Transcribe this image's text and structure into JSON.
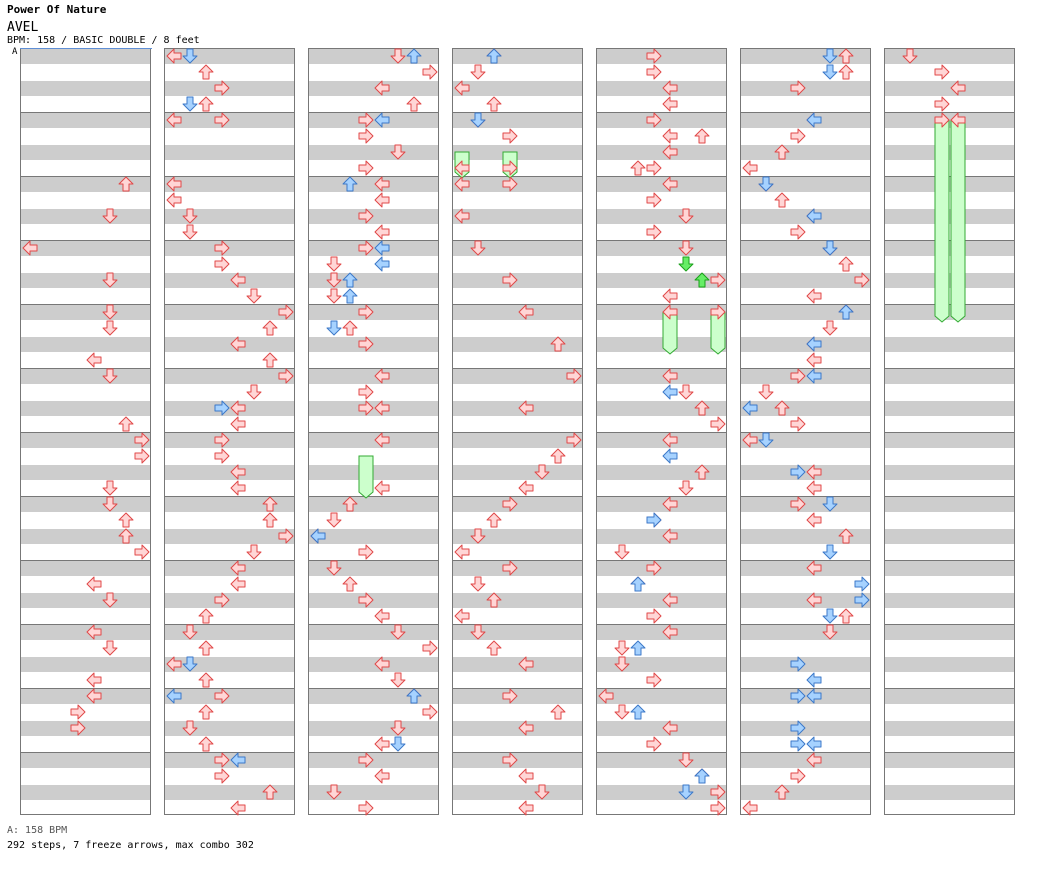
{
  "song": {
    "title": "Power Of Nature",
    "artist": "AVEL",
    "info": "BPM: 158 / BASIC DOUBLE / 8 feet",
    "segment_label": "A"
  },
  "footer": {
    "bpm_line": "A: 158 BPM",
    "stats_line": "292 steps, 7 freeze arrows, max combo 302"
  },
  "colors": {
    "quarter_fill": "#ffd6d6",
    "quarter_stroke": "#e04848",
    "eighth_fill": "#a6d2ff",
    "eighth_stroke": "#3c78c8",
    "green_fill": "#66ee66",
    "green_stroke": "#1aa01a",
    "freeze_fill": "#ccffcc",
    "freeze_stroke": "#33aa33",
    "stripe": "#cdcdcd"
  },
  "chart": {
    "panels": 8,
    "panel_order": [
      "left",
      "down",
      "up",
      "right",
      "left",
      "down",
      "up",
      "right"
    ],
    "measures_per_column": 12,
    "notes": [
      [
        0,
        8,
        6,
        "q"
      ],
      [
        0,
        10,
        5,
        "q"
      ],
      [
        0,
        12,
        0,
        "q"
      ],
      [
        0,
        14,
        5,
        "q"
      ],
      [
        0,
        16,
        5,
        "q"
      ],
      [
        0,
        17,
        5,
        "q"
      ],
      [
        0,
        19,
        4,
        "q"
      ],
      [
        0,
        20,
        5,
        "q"
      ],
      [
        0,
        23,
        6,
        "q"
      ],
      [
        0,
        24,
        7,
        "q"
      ],
      [
        0,
        25,
        7,
        "q"
      ],
      [
        0,
        27,
        5,
        "q"
      ],
      [
        0,
        28,
        5,
        "q"
      ],
      [
        0,
        29,
        6,
        "q"
      ],
      [
        0,
        30,
        6,
        "q"
      ],
      [
        0,
        31,
        7,
        "q"
      ],
      [
        0,
        33,
        4,
        "q"
      ],
      [
        0,
        34,
        5,
        "q"
      ],
      [
        0,
        36,
        4,
        "q"
      ],
      [
        0,
        37,
        5,
        "q"
      ],
      [
        0,
        39,
        4,
        "q"
      ],
      [
        0,
        40,
        4,
        "q"
      ],
      [
        0,
        41,
        3,
        "q"
      ],
      [
        0,
        42,
        3,
        "q"
      ],
      [
        1,
        0,
        0,
        "q"
      ],
      [
        1,
        0,
        1,
        "e"
      ],
      [
        1,
        1,
        2,
        "q"
      ],
      [
        1,
        2,
        3,
        "q"
      ],
      [
        1,
        3,
        1,
        "e"
      ],
      [
        1,
        3,
        2,
        "q"
      ],
      [
        1,
        4,
        0,
        "q"
      ],
      [
        1,
        4,
        3,
        "q"
      ],
      [
        1,
        8,
        0,
        "q"
      ],
      [
        1,
        9,
        0,
        "q"
      ],
      [
        1,
        10,
        1,
        "q"
      ],
      [
        1,
        11,
        1,
        "q"
      ],
      [
        1,
        12,
        3,
        "q"
      ],
      [
        1,
        13,
        3,
        "q"
      ],
      [
        1,
        14,
        4,
        "q"
      ],
      [
        1,
        15,
        5,
        "q"
      ],
      [
        1,
        16,
        7,
        "q"
      ],
      [
        1,
        17,
        6,
        "q"
      ],
      [
        1,
        18,
        4,
        "q"
      ],
      [
        1,
        19,
        6,
        "q"
      ],
      [
        1,
        20,
        7,
        "q"
      ],
      [
        1,
        21,
        5,
        "q"
      ],
      [
        1,
        22,
        4,
        "q"
      ],
      [
        1,
        22,
        3,
        "e"
      ],
      [
        1,
        23,
        4,
        "q"
      ],
      [
        1,
        24,
        3,
        "q"
      ],
      [
        1,
        25,
        3,
        "q"
      ],
      [
        1,
        26,
        4,
        "q"
      ],
      [
        1,
        27,
        4,
        "q"
      ],
      [
        1,
        28,
        6,
        "q"
      ],
      [
        1,
        29,
        6,
        "q"
      ],
      [
        1,
        30,
        7,
        "q"
      ],
      [
        1,
        31,
        5,
        "q"
      ],
      [
        1,
        32,
        4,
        "q"
      ],
      [
        1,
        33,
        4,
        "q"
      ],
      [
        1,
        34,
        3,
        "q"
      ],
      [
        1,
        35,
        2,
        "q"
      ],
      [
        1,
        36,
        1,
        "q"
      ],
      [
        1,
        37,
        2,
        "q"
      ],
      [
        1,
        38,
        0,
        "q"
      ],
      [
        1,
        38,
        1,
        "e"
      ],
      [
        1,
        39,
        2,
        "q"
      ],
      [
        1,
        40,
        3,
        "q"
      ],
      [
        1,
        40,
        0,
        "e"
      ],
      [
        1,
        41,
        2,
        "q"
      ],
      [
        1,
        42,
        1,
        "q"
      ],
      [
        1,
        43,
        2,
        "q"
      ],
      [
        1,
        44,
        3,
        "q"
      ],
      [
        1,
        44,
        4,
        "e"
      ],
      [
        1,
        45,
        3,
        "q"
      ],
      [
        1,
        46,
        6,
        "q"
      ],
      [
        1,
        47,
        4,
        "q"
      ],
      [
        2,
        0,
        5,
        "q"
      ],
      [
        2,
        0,
        6,
        "e"
      ],
      [
        2,
        1,
        7,
        "q"
      ],
      [
        2,
        2,
        4,
        "q"
      ],
      [
        2,
        3,
        6,
        "q"
      ],
      [
        2,
        4,
        3,
        "q"
      ],
      [
        2,
        4,
        4,
        "e"
      ],
      [
        2,
        5,
        3,
        "q"
      ],
      [
        2,
        6,
        5,
        "q"
      ],
      [
        2,
        7,
        3,
        "q"
      ],
      [
        2,
        8,
        4,
        "q"
      ],
      [
        2,
        8,
        2,
        "e"
      ],
      [
        2,
        9,
        4,
        "q"
      ],
      [
        2,
        10,
        3,
        "q"
      ],
      [
        2,
        11,
        4,
        "q"
      ],
      [
        2,
        12,
        3,
        "q"
      ],
      [
        2,
        12,
        4,
        "e"
      ],
      [
        2,
        13,
        4,
        "e"
      ],
      [
        2,
        13,
        1,
        "q"
      ],
      [
        2,
        14,
        1,
        "q"
      ],
      [
        2,
        14,
        2,
        "e"
      ],
      [
        2,
        15,
        1,
        "q"
      ],
      [
        2,
        15,
        2,
        "e"
      ],
      [
        2,
        16,
        3,
        "q"
      ],
      [
        2,
        17,
        2,
        "q"
      ],
      [
        2,
        17,
        1,
        "e"
      ],
      [
        2,
        18,
        3,
        "q"
      ],
      [
        2,
        20,
        4,
        "q"
      ],
      [
        2,
        21,
        3,
        "q"
      ],
      [
        2,
        22,
        3,
        "q"
      ],
      [
        2,
        22,
        4,
        "q"
      ],
      [
        2,
        24,
        4,
        "q"
      ],
      [
        2,
        27,
        4,
        "q"
      ],
      [
        2,
        28,
        2,
        "q"
      ],
      [
        2,
        29,
        1,
        "q"
      ],
      [
        2,
        30,
        0,
        "q"
      ],
      [
        2,
        30,
        0,
        "e"
      ],
      [
        2,
        31,
        3,
        "q"
      ],
      [
        2,
        32,
        1,
        "q"
      ],
      [
        2,
        33,
        2,
        "q"
      ],
      [
        2,
        34,
        3,
        "q"
      ],
      [
        2,
        35,
        4,
        "q"
      ],
      [
        2,
        36,
        5,
        "q"
      ],
      [
        2,
        37,
        7,
        "q"
      ],
      [
        2,
        38,
        4,
        "q"
      ],
      [
        2,
        39,
        5,
        "q"
      ],
      [
        2,
        40,
        6,
        "q"
      ],
      [
        2,
        40,
        6,
        "e"
      ],
      [
        2,
        41,
        7,
        "q"
      ],
      [
        2,
        42,
        5,
        "q"
      ],
      [
        2,
        43,
        4,
        "q"
      ],
      [
        2,
        43,
        5,
        "e"
      ],
      [
        2,
        44,
        3,
        "q"
      ],
      [
        2,
        45,
        4,
        "q"
      ],
      [
        2,
        46,
        1,
        "q"
      ],
      [
        2,
        47,
        3,
        "q"
      ],
      [
        3,
        0,
        2,
        "q"
      ],
      [
        3,
        0,
        2,
        "e"
      ],
      [
        3,
        1,
        1,
        "q"
      ],
      [
        3,
        2,
        0,
        "q"
      ],
      [
        3,
        3,
        2,
        "q"
      ],
      [
        3,
        4,
        1,
        "q"
      ],
      [
        3,
        4,
        1,
        "e"
      ],
      [
        3,
        5,
        3,
        "q"
      ],
      [
        3,
        7,
        0,
        "q"
      ],
      [
        3,
        7,
        3,
        "q"
      ],
      [
        3,
        8,
        0,
        "q"
      ],
      [
        3,
        8,
        3,
        "q"
      ],
      [
        3,
        10,
        0,
        "q"
      ],
      [
        3,
        12,
        1,
        "q"
      ],
      [
        3,
        14,
        3,
        "q"
      ],
      [
        3,
        16,
        4,
        "q"
      ],
      [
        3,
        18,
        6,
        "q"
      ],
      [
        3,
        20,
        7,
        "q"
      ],
      [
        3,
        22,
        4,
        "q"
      ],
      [
        3,
        24,
        7,
        "q"
      ],
      [
        3,
        25,
        6,
        "q"
      ],
      [
        3,
        26,
        5,
        "q"
      ],
      [
        3,
        27,
        4,
        "q"
      ],
      [
        3,
        28,
        3,
        "q"
      ],
      [
        3,
        29,
        2,
        "q"
      ],
      [
        3,
        30,
        1,
        "q"
      ],
      [
        3,
        31,
        0,
        "q"
      ],
      [
        3,
        32,
        3,
        "q"
      ],
      [
        3,
        33,
        1,
        "q"
      ],
      [
        3,
        34,
        2,
        "q"
      ],
      [
        3,
        35,
        0,
        "q"
      ],
      [
        3,
        36,
        1,
        "q"
      ],
      [
        3,
        37,
        2,
        "q"
      ],
      [
        3,
        38,
        4,
        "q"
      ],
      [
        3,
        40,
        3,
        "q"
      ],
      [
        3,
        41,
        6,
        "q"
      ],
      [
        3,
        42,
        4,
        "q"
      ],
      [
        3,
        44,
        3,
        "q"
      ],
      [
        3,
        45,
        4,
        "q"
      ],
      [
        3,
        46,
        5,
        "q"
      ],
      [
        3,
        47,
        4,
        "q"
      ],
      [
        4,
        0,
        3,
        "q"
      ],
      [
        4,
        1,
        3,
        "q"
      ],
      [
        4,
        2,
        4,
        "q"
      ],
      [
        4,
        3,
        4,
        "q"
      ],
      [
        4,
        4,
        3,
        "q"
      ],
      [
        4,
        5,
        4,
        "q"
      ],
      [
        4,
        5,
        6,
        "q"
      ],
      [
        4,
        6,
        4,
        "q"
      ],
      [
        4,
        7,
        2,
        "q"
      ],
      [
        4,
        7,
        3,
        "q"
      ],
      [
        4,
        8,
        4,
        "q"
      ],
      [
        4,
        9,
        3,
        "q"
      ],
      [
        4,
        10,
        5,
        "q"
      ],
      [
        4,
        11,
        3,
        "q"
      ],
      [
        4,
        12,
        5,
        "q"
      ],
      [
        4,
        13,
        5,
        "g"
      ],
      [
        4,
        14,
        6,
        "g"
      ],
      [
        4,
        14,
        7,
        "q"
      ],
      [
        4,
        15,
        4,
        "q"
      ],
      [
        4,
        16,
        4,
        "q"
      ],
      [
        4,
        16,
        7,
        "q"
      ],
      [
        4,
        20,
        4,
        "q"
      ],
      [
        4,
        21,
        4,
        "e"
      ],
      [
        4,
        21,
        5,
        "q"
      ],
      [
        4,
        22,
        6,
        "q"
      ],
      [
        4,
        23,
        7,
        "q"
      ],
      [
        4,
        24,
        4,
        "q"
      ],
      [
        4,
        25,
        4,
        "e"
      ],
      [
        4,
        26,
        6,
        "q"
      ],
      [
        4,
        27,
        5,
        "q"
      ],
      [
        4,
        28,
        4,
        "q"
      ],
      [
        4,
        29,
        3,
        "q"
      ],
      [
        4,
        29,
        3,
        "e"
      ],
      [
        4,
        30,
        4,
        "q"
      ],
      [
        4,
        31,
        1,
        "q"
      ],
      [
        4,
        32,
        3,
        "q"
      ],
      [
        4,
        33,
        2,
        "q"
      ],
      [
        4,
        33,
        2,
        "e"
      ],
      [
        4,
        34,
        4,
        "q"
      ],
      [
        4,
        35,
        3,
        "q"
      ],
      [
        4,
        36,
        4,
        "q"
      ],
      [
        4,
        37,
        1,
        "q"
      ],
      [
        4,
        37,
        2,
        "e"
      ],
      [
        4,
        38,
        1,
        "q"
      ],
      [
        4,
        39,
        3,
        "q"
      ],
      [
        4,
        40,
        0,
        "q"
      ],
      [
        4,
        41,
        1,
        "q"
      ],
      [
        4,
        41,
        2,
        "e"
      ],
      [
        4,
        42,
        4,
        "q"
      ],
      [
        4,
        43,
        3,
        "q"
      ],
      [
        4,
        44,
        5,
        "q"
      ],
      [
        4,
        45,
        6,
        "q"
      ],
      [
        4,
        45,
        6,
        "e"
      ],
      [
        4,
        46,
        7,
        "q"
      ],
      [
        4,
        46,
        5,
        "e"
      ],
      [
        4,
        47,
        7,
        "q"
      ],
      [
        5,
        0,
        6,
        "q"
      ],
      [
        5,
        0,
        5,
        "e"
      ],
      [
        5,
        1,
        6,
        "q"
      ],
      [
        5,
        1,
        5,
        "e"
      ],
      [
        5,
        2,
        3,
        "q"
      ],
      [
        5,
        4,
        4,
        "q"
      ],
      [
        5,
        4,
        4,
        "e"
      ],
      [
        5,
        5,
        3,
        "q"
      ],
      [
        5,
        6,
        2,
        "q"
      ],
      [
        5,
        7,
        0,
        "q"
      ],
      [
        5,
        8,
        1,
        "q"
      ],
      [
        5,
        8,
        1,
        "e"
      ],
      [
        5,
        9,
        2,
        "q"
      ],
      [
        5,
        10,
        4,
        "q"
      ],
      [
        5,
        10,
        4,
        "e"
      ],
      [
        5,
        11,
        3,
        "q"
      ],
      [
        5,
        12,
        5,
        "q"
      ],
      [
        5,
        12,
        5,
        "e"
      ],
      [
        5,
        13,
        6,
        "q"
      ],
      [
        5,
        14,
        7,
        "q"
      ],
      [
        5,
        15,
        4,
        "q"
      ],
      [
        5,
        16,
        6,
        "q"
      ],
      [
        5,
        16,
        6,
        "e"
      ],
      [
        5,
        17,
        5,
        "q"
      ],
      [
        5,
        18,
        4,
        "q"
      ],
      [
        5,
        18,
        4,
        "e"
      ],
      [
        5,
        19,
        4,
        "q"
      ],
      [
        5,
        20,
        3,
        "q"
      ],
      [
        5,
        20,
        4,
        "e"
      ],
      [
        5,
        21,
        1,
        "q"
      ],
      [
        5,
        22,
        2,
        "q"
      ],
      [
        5,
        22,
        0,
        "e"
      ],
      [
        5,
        23,
        3,
        "q"
      ],
      [
        5,
        24,
        0,
        "q"
      ],
      [
        5,
        24,
        1,
        "e"
      ],
      [
        5,
        26,
        4,
        "q"
      ],
      [
        5,
        26,
        3,
        "e"
      ],
      [
        5,
        27,
        4,
        "q"
      ],
      [
        5,
        28,
        3,
        "q"
      ],
      [
        5,
        28,
        5,
        "e"
      ],
      [
        5,
        29,
        4,
        "q"
      ],
      [
        5,
        30,
        6,
        "q"
      ],
      [
        5,
        31,
        5,
        "e"
      ],
      [
        5,
        32,
        4,
        "q"
      ],
      [
        5,
        33,
        7,
        "e"
      ],
      [
        5,
        34,
        4,
        "q"
      ],
      [
        5,
        34,
        7,
        "e"
      ],
      [
        5,
        35,
        6,
        "q"
      ],
      [
        5,
        35,
        5,
        "e"
      ],
      [
        5,
        36,
        5,
        "q"
      ],
      [
        5,
        38,
        3,
        "e"
      ],
      [
        5,
        39,
        4,
        "e"
      ],
      [
        5,
        40,
        3,
        "e"
      ],
      [
        5,
        40,
        4,
        "e"
      ],
      [
        5,
        42,
        3,
        "e"
      ],
      [
        5,
        43,
        3,
        "e"
      ],
      [
        5,
        43,
        4,
        "e"
      ],
      [
        5,
        44,
        4,
        "q"
      ],
      [
        5,
        45,
        3,
        "q"
      ],
      [
        5,
        46,
        2,
        "q"
      ],
      [
        5,
        47,
        0,
        "q"
      ],
      [
        6,
        0,
        1,
        "q"
      ],
      [
        6,
        1,
        3,
        "q"
      ],
      [
        6,
        2,
        4,
        "q"
      ],
      [
        6,
        3,
        3,
        "q"
      ],
      [
        6,
        4,
        3,
        "q"
      ],
      [
        6,
        4,
        4,
        "q"
      ]
    ],
    "freezes": [
      [
        2,
        25,
        27,
        3
      ],
      [
        3,
        6,
        7,
        0
      ],
      [
        3,
        6,
        7,
        3
      ],
      [
        4,
        16,
        18,
        4
      ],
      [
        4,
        16,
        18,
        7
      ],
      [
        6,
        4,
        16,
        3
      ],
      [
        6,
        4,
        16,
        4
      ]
    ]
  }
}
